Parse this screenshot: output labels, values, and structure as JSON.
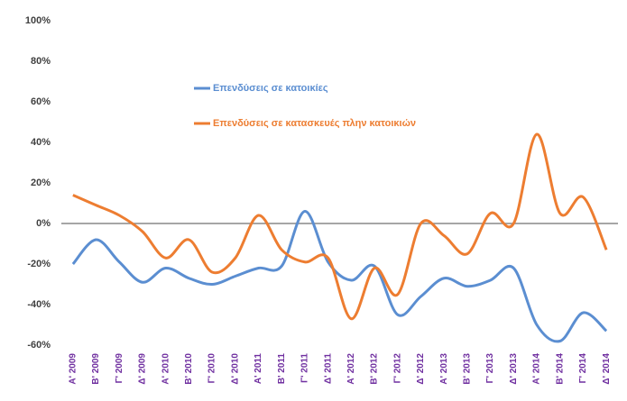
{
  "chart_data": {
    "type": "line",
    "categories": [
      "Α' 2009",
      "Β' 2009",
      "Γ' 2009",
      "Δ' 2009",
      "Α' 2010",
      "Β' 2010",
      "Γ' 2010",
      "Δ' 2010",
      "Α' 2011",
      "Β' 2011",
      "Γ' 2011",
      "Δ' 2011",
      "Α' 2012",
      "Β' 2012",
      "Γ' 2012",
      "Δ' 2012",
      "Α' 2013",
      "Β' 2013",
      "Γ' 2013",
      "Δ' 2013",
      "Α' 2014",
      "Β' 2014",
      "Γ' 2014",
      "Δ' 2014"
    ],
    "series": [
      {
        "name": "Επενδύσεις σε κατοικίες",
        "color": "#5b8ed1",
        "values": [
          -20,
          -8,
          -19,
          -29,
          -22,
          -27,
          -30,
          -26,
          -22,
          -21,
          6,
          -19,
          -28,
          -21,
          -45,
          -36,
          -27,
          -31,
          -28,
          -22,
          -50,
          -58,
          -44,
          -53
        ]
      },
      {
        "name": "Επενδύσεις σε κατασκευές πλην κατοικιών",
        "color": "#ed7d31",
        "values": [
          14,
          9,
          4,
          -4,
          -17,
          -8,
          -24,
          -17,
          4,
          -13,
          -19,
          -17,
          -47,
          -22,
          -35,
          0,
          -6,
          -15,
          5,
          0,
          44,
          5,
          13,
          -13
        ]
      }
    ],
    "ylim": [
      -60,
      100
    ],
    "yticks": [
      {
        "value": -60,
        "label": "-60%"
      },
      {
        "value": -40,
        "label": "-40%"
      },
      {
        "value": -20,
        "label": "-20%"
      },
      {
        "value": 0,
        "label": "0%"
      },
      {
        "value": 20,
        "label": "20%"
      },
      {
        "value": 40,
        "label": "40%"
      },
      {
        "value": 60,
        "label": "60%"
      },
      {
        "value": 80,
        "label": "80%"
      },
      {
        "value": 100,
        "label": "100%"
      }
    ],
    "grid": false
  }
}
